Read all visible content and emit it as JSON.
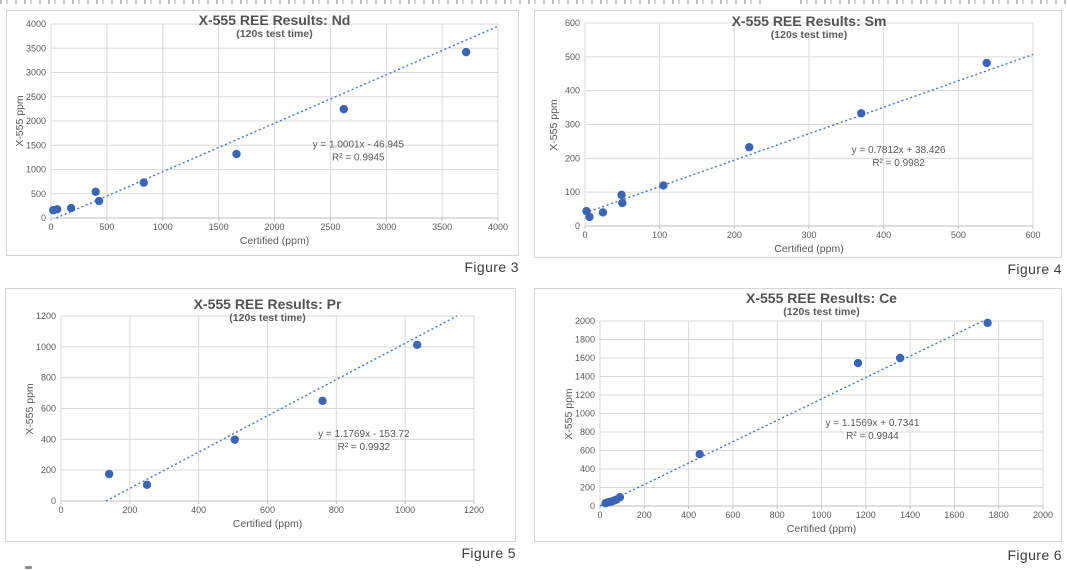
{
  "colors": {
    "marker": "#3a65b3",
    "trendline": "#4472c4",
    "gridline": "#d9d9d9",
    "axis_line": "#bfbfbf",
    "axis_text": "#595959",
    "annotation_text": "#595959"
  },
  "chart_data": [
    {
      "type": "scatter",
      "title": "X-555 REE Results: Nd",
      "subtitle": "(120s test time)",
      "xlabel": "Certified (ppm)",
      "ylabel": "X-555 ppm",
      "xlim": [
        0,
        4000
      ],
      "xstep": 500,
      "ylim": [
        0,
        4000
      ],
      "ystep": 500,
      "grid": true,
      "points": [
        [
          20,
          160
        ],
        [
          55,
          180
        ],
        [
          180,
          205
        ],
        [
          400,
          540
        ],
        [
          430,
          350
        ],
        [
          830,
          730
        ],
        [
          1660,
          1320
        ],
        [
          2620,
          2245
        ],
        [
          3715,
          3420
        ]
      ],
      "trendline": {
        "slope": 1.0001,
        "intercept": -46.945
      },
      "equation": "y = 1.0001x - 46.945",
      "r_squared": "R² = 0.9945",
      "annotation_pos": [
        2750,
        1520
      ],
      "figure_caption": "Figure 3"
    },
    {
      "type": "scatter",
      "title": "X-555 REE Results: Sm",
      "subtitle": "(120s test time)",
      "xlabel": "Certified (ppm)",
      "ylabel": "X-555 ppm",
      "xlim": [
        0,
        600
      ],
      "xstep": 100,
      "ylim": [
        0,
        600
      ],
      "ystep": 100,
      "grid": true,
      "points": [
        [
          2,
          44
        ],
        [
          6,
          27
        ],
        [
          24,
          40
        ],
        [
          49,
          92
        ],
        [
          50,
          68
        ],
        [
          105,
          120
        ],
        [
          220,
          233
        ],
        [
          370,
          333
        ],
        [
          538,
          482
        ]
      ],
      "trendline": {
        "slope": 0.7812,
        "intercept": 38.426
      },
      "equation": "y = 0.7812x + 38.426",
      "r_squared": "R² = 0.9982",
      "annotation_pos": [
        420,
        225
      ],
      "figure_caption": "Figure 4"
    },
    {
      "type": "scatter",
      "title": "X-555 REE Results: Pr",
      "subtitle": "(120s test time)",
      "xlabel": "Certified (ppm)",
      "ylabel": "X-555 ppm",
      "xlim": [
        0,
        1200
      ],
      "xstep": 200,
      "ylim": [
        0,
        1200
      ],
      "ystep": 200,
      "grid": true,
      "points": [
        [
          140,
          175
        ],
        [
          250,
          105
        ],
        [
          505,
          398
        ],
        [
          760,
          650
        ],
        [
          1035,
          1013
        ]
      ],
      "trendline": {
        "slope": 1.1769,
        "intercept": -153.72
      },
      "equation": "y = 1.1769x - 153.72",
      "r_squared": "R² = 0.9932",
      "annotation_pos": [
        880,
        435
      ],
      "figure_caption": "Figure 5"
    },
    {
      "type": "scatter",
      "title": "X-555 REE Results: Ce",
      "subtitle": "(120s test time)",
      "xlabel": "Certified (ppm)",
      "ylabel": "X-555 ppm",
      "xlim": [
        0,
        2000
      ],
      "xstep": 200,
      "ylim": [
        0,
        2000
      ],
      "ystep": 200,
      "grid": true,
      "points": [
        [
          25,
          30
        ],
        [
          35,
          38
        ],
        [
          45,
          45
        ],
        [
          55,
          50
        ],
        [
          65,
          60
        ],
        [
          75,
          70
        ],
        [
          90,
          95
        ],
        [
          450,
          560
        ],
        [
          1165,
          1545
        ],
        [
          1355,
          1600
        ],
        [
          1750,
          1980
        ]
      ],
      "trendline": {
        "slope": 1.1569,
        "intercept": 0.7341
      },
      "equation": "y = 1.1569x + 0.7341",
      "r_squared": "R² = 0.9944",
      "annotation_pos": [
        1230,
        900
      ],
      "figure_caption": "Figure 6"
    }
  ]
}
